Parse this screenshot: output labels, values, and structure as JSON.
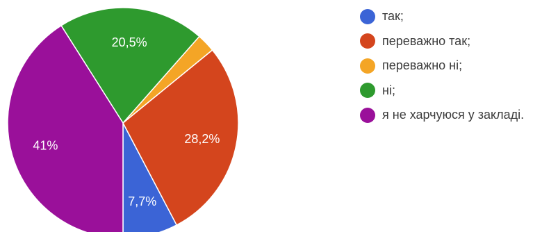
{
  "chart_data": {
    "type": "pie",
    "categories": [
      "так;",
      "переважно так;",
      "переважно ні;",
      "ні;",
      "я не харчуюся у закладі."
    ],
    "values": [
      7.7,
      28.2,
      2.6,
      20.5,
      41.0
    ],
    "data_labels": [
      "7,7%",
      "28,2%",
      "",
      "20,5%",
      "41%"
    ],
    "colors": [
      "#3b64d6",
      "#d4451d",
      "#f4a526",
      "#2e9a2e",
      "#9a109a"
    ],
    "legend_position": "right"
  }
}
